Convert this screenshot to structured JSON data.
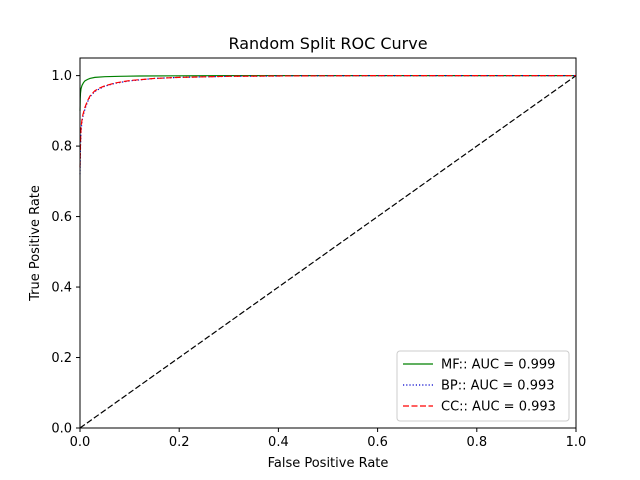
{
  "chart_data": {
    "type": "line",
    "title": "Random Split ROC Curve",
    "xlabel": "False Positive Rate",
    "ylabel": "True Positive Rate",
    "xlim": [
      0.0,
      1.0
    ],
    "ylim": [
      0.0,
      1.05
    ],
    "x_ticks": [
      "0.0",
      "0.2",
      "0.4",
      "0.6",
      "0.8",
      "1.0"
    ],
    "y_ticks": [
      "0.0",
      "0.2",
      "0.4",
      "0.6",
      "0.8",
      "1.0"
    ],
    "grid": false,
    "legend_position": "lower-right",
    "series": [
      {
        "name": "MF:: AUC = 0.999",
        "color": "#008000",
        "style": "solid",
        "x": [
          0.0,
          0.0005,
          0.001,
          0.002,
          0.004,
          0.007,
          0.01,
          0.015,
          0.02,
          0.03,
          0.05,
          0.08,
          0.12,
          0.2,
          0.3,
          0.5,
          0.7,
          1.0
        ],
        "y": [
          0.9,
          0.935,
          0.95,
          0.962,
          0.972,
          0.98,
          0.985,
          0.989,
          0.992,
          0.995,
          0.997,
          0.998,
          0.999,
          0.9995,
          1.0,
          1.0,
          1.0,
          1.0
        ]
      },
      {
        "name": "BP:: AUC = 0.993",
        "color": "#0000cc",
        "style": "dotted",
        "x": [
          0.0,
          0.001,
          0.002,
          0.004,
          0.006,
          0.01,
          0.015,
          0.02,
          0.03,
          0.04,
          0.05,
          0.07,
          0.1,
          0.15,
          0.2,
          0.3,
          0.4,
          0.6,
          0.8,
          1.0
        ],
        "y": [
          0.72,
          0.8,
          0.84,
          0.87,
          0.885,
          0.905,
          0.925,
          0.94,
          0.955,
          0.963,
          0.97,
          0.978,
          0.985,
          0.992,
          0.995,
          0.998,
          0.999,
          1.0,
          1.0,
          1.0
        ]
      },
      {
        "name": "CC:: AUC = 0.993",
        "color": "#ff0000",
        "style": "dashed",
        "x": [
          0.0,
          0.001,
          0.002,
          0.004,
          0.006,
          0.01,
          0.015,
          0.02,
          0.03,
          0.04,
          0.05,
          0.07,
          0.1,
          0.15,
          0.2,
          0.3,
          0.4,
          0.6,
          0.8,
          1.0
        ],
        "y": [
          0.74,
          0.81,
          0.85,
          0.875,
          0.89,
          0.91,
          0.928,
          0.942,
          0.957,
          0.965,
          0.971,
          0.979,
          0.986,
          0.992,
          0.995,
          0.998,
          0.999,
          1.0,
          1.0,
          1.0
        ]
      }
    ],
    "reference_line": {
      "color": "#000000",
      "style": "dashed",
      "x": [
        0.0,
        1.0
      ],
      "y": [
        0.0,
        1.0
      ]
    }
  }
}
